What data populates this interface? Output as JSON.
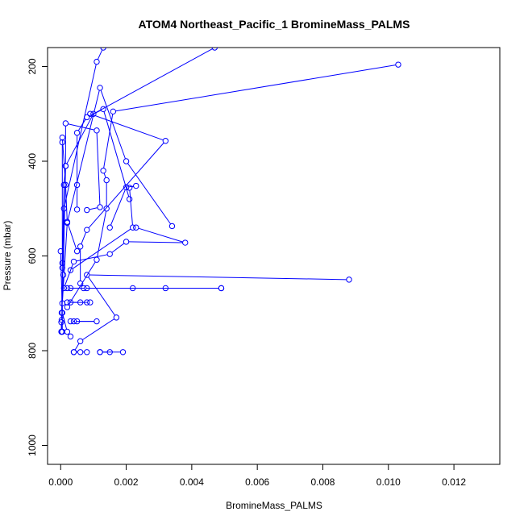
{
  "chart_data": {
    "type": "line",
    "title": "ATOM4 Northeast_Pacific_1 BromineMass_PALMS",
    "xlabel": "BromineMass_PALMS",
    "ylabel": "Pressure (mbar)",
    "xlim": [
      -0.0004,
      0.0134
    ],
    "ylim": [
      1040,
      160
    ],
    "y_reversed": true,
    "grid": false,
    "xticks": [
      0.0,
      0.002,
      0.004,
      0.006,
      0.008,
      0.01,
      0.012
    ],
    "xtick_labels": [
      "0.000",
      "0.002",
      "0.004",
      "0.006",
      "0.008",
      "0.010",
      "0.012"
    ],
    "yticks": [
      200,
      400,
      600,
      800,
      1000
    ],
    "ytick_labels": [
      "200",
      "400",
      "600",
      "800",
      "1000"
    ],
    "color": "#0000ff",
    "marker": "open-circle",
    "series": [
      {
        "points": [
          [
            2e-05,
            760
          ],
          [
            2e-05,
            740
          ],
          [
            3e-05,
            720
          ],
          [
            0.0001,
            500
          ],
          [
            0.0011,
            190
          ],
          [
            0.0013,
            160
          ]
        ]
      },
      {
        "points": [
          [
            3e-05,
            760
          ],
          [
            3e-05,
            735
          ],
          [
            8e-05,
            640
          ],
          [
            0.00015,
            410
          ],
          [
            0.001,
            300
          ],
          [
            0.0047,
            160
          ]
        ]
      },
      {
        "points": [
          [
            5e-05,
            760
          ],
          [
            5e-05,
            700
          ],
          [
            0.0002,
            530
          ],
          [
            0.0012,
            245
          ],
          [
            0.002,
            400
          ],
          [
            0.0034,
            537
          ]
        ]
      },
      {
        "points": [
          [
            0.0015,
            803
          ],
          [
            0.0012,
            803
          ],
          [
            0.0012,
            803
          ],
          [
            0.0019,
            803
          ]
        ]
      },
      {
        "points": [
          [
            0.0004,
            803
          ],
          [
            0.0006,
            780
          ],
          [
            0.0017,
            730
          ],
          [
            0.0008,
            640
          ],
          [
            0.0088,
            650
          ]
        ]
      },
      {
        "points": [
          [
            0.0008,
            803
          ],
          [
            0.0006,
            803
          ],
          [
            0.0004,
            803
          ]
        ]
      },
      {
        "points": [
          [
            0.0003,
            738
          ],
          [
            0.0005,
            738
          ],
          [
            0.0011,
            738
          ],
          [
            0.0004,
            738
          ]
        ]
      },
      {
        "points": [
          [
            0.0002,
            708
          ],
          [
            0.0011,
            608
          ],
          [
            0.0014,
            500
          ],
          [
            0.0014,
            440
          ],
          [
            0.0013,
            420
          ],
          [
            0.0016,
            295
          ],
          [
            0.0103,
            196
          ]
        ]
      },
      {
        "points": [
          [
            0.0002,
            698
          ],
          [
            0.0008,
            698
          ],
          [
            0.0009,
            698
          ],
          [
            0.0006,
            698
          ],
          [
            0.0003,
            698
          ]
        ]
      },
      {
        "points": [
          [
            0.0003,
            668
          ],
          [
            0.0007,
            668
          ],
          [
            0.0022,
            668
          ]
        ]
      },
      {
        "points": [
          [
            0.0032,
            668
          ],
          [
            0.0049,
            668
          ],
          [
            0.0049,
            668
          ],
          [
            0.0008,
            668
          ],
          [
            0.0002,
            668
          ]
        ]
      },
      {
        "points": [
          [
            0.0001,
            668
          ],
          [
            0.0004,
            612
          ],
          [
            0.0015,
            596
          ],
          [
            0.002,
            570
          ],
          [
            0.0038,
            572
          ],
          [
            0.0023,
            540
          ]
        ]
      },
      {
        "points": [
          [
            0.0003,
            630
          ],
          [
            0.0022,
            540
          ],
          [
            0.0021,
            456
          ],
          [
            0.0023,
            452
          ],
          [
            0.002,
            455
          ],
          [
            0.0015,
            540
          ]
        ]
      },
      {
        "points": [
          [
            0.0006,
            658
          ],
          [
            0.0006,
            580
          ],
          [
            0.0008,
            545
          ],
          [
            0.0032,
            357
          ],
          [
            0.0009,
            300
          ]
        ]
      },
      {
        "points": [
          [
            0.0005,
            502
          ],
          [
            0.0005,
            450
          ],
          [
            0.0005,
            340
          ],
          [
            0.0008,
            307
          ],
          [
            0.0013,
            290
          ],
          [
            0.0021,
            480
          ]
        ]
      },
      {
        "points": [
          [
            5e-05,
            615
          ],
          [
            0.0001,
            450
          ],
          [
            0.00015,
            410
          ],
          [
            0.00015,
            320
          ],
          [
            0.0011,
            335
          ],
          [
            0.0012,
            497
          ],
          [
            0.0008,
            503
          ]
        ]
      },
      {
        "points": [
          [
            5e-05,
            625
          ],
          [
            5e-05,
            360
          ],
          [
            5e-05,
            350
          ],
          [
            0.00015,
            450
          ],
          [
            0.0002,
            528
          ],
          [
            0.0005,
            590
          ]
        ]
      },
      {
        "points": [
          [
            0.0,
            590
          ],
          [
            5e-05,
            720
          ],
          [
            0.0002,
            760
          ],
          [
            0.0003,
            770
          ]
        ]
      }
    ]
  }
}
